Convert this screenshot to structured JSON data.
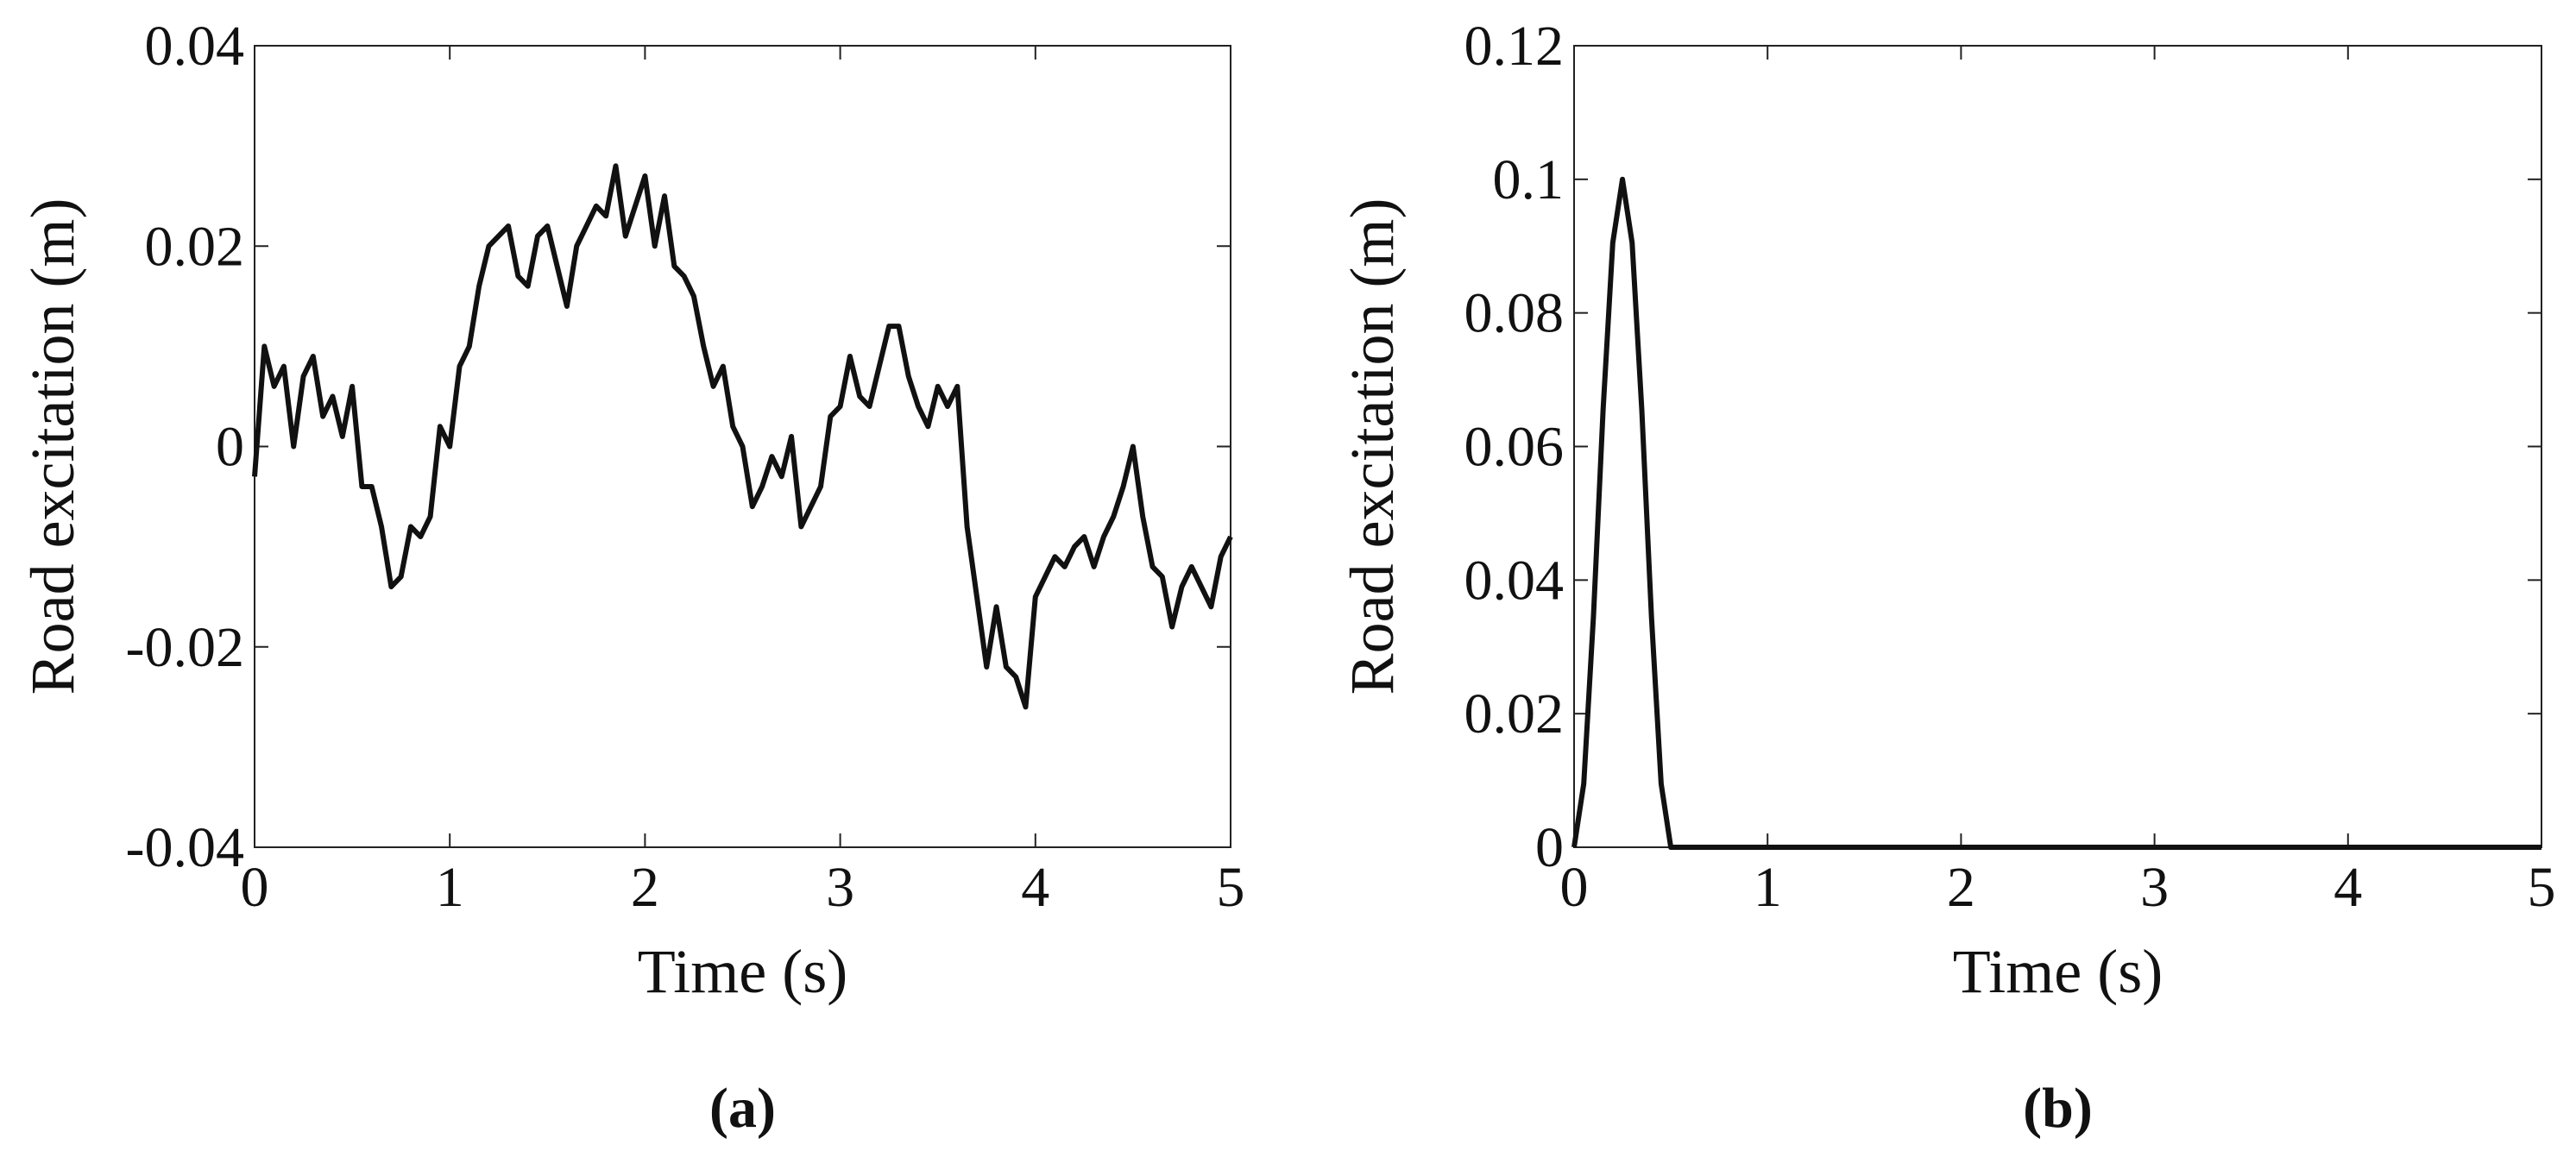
{
  "chart_data": [
    {
      "type": "line",
      "label": "(a)",
      "xlabel": "Time (s)",
      "ylabel": "Road excitation (m)",
      "xlim": [
        0,
        5
      ],
      "ylim": [
        -0.04,
        0.04
      ],
      "xticks": [
        0,
        1,
        2,
        3,
        4,
        5
      ],
      "yticks": [
        -0.04,
        -0.02,
        0,
        0.02,
        0.04
      ],
      "series": [
        {
          "color": "#111111",
          "x": [
            0,
            0.05,
            0.1,
            0.15,
            0.2,
            0.25,
            0.3,
            0.35,
            0.4,
            0.45,
            0.5,
            0.55,
            0.6,
            0.65,
            0.7,
            0.75,
            0.8,
            0.85,
            0.9,
            0.95,
            1.0,
            1.05,
            1.1,
            1.15,
            1.2,
            1.25,
            1.3,
            1.35,
            1.4,
            1.45,
            1.5,
            1.55,
            1.6,
            1.65,
            1.7,
            1.75,
            1.8,
            1.85,
            1.9,
            1.95,
            2.0,
            2.05,
            2.1,
            2.15,
            2.2,
            2.25,
            2.3,
            2.35,
            2.4,
            2.45,
            2.5,
            2.55,
            2.6,
            2.65,
            2.7,
            2.75,
            2.8,
            2.85,
            2.9,
            2.95,
            3.0,
            3.05,
            3.1,
            3.15,
            3.2,
            3.25,
            3.3,
            3.35,
            3.4,
            3.45,
            3.5,
            3.55,
            3.6,
            3.65,
            3.7,
            3.75,
            3.8,
            3.85,
            3.9,
            3.95,
            4.0,
            4.05,
            4.1,
            4.15,
            4.2,
            4.25,
            4.3,
            4.35,
            4.4,
            4.45,
            4.5,
            4.55,
            4.6,
            4.65,
            4.7,
            4.75,
            4.8,
            4.85,
            4.9,
            4.95,
            5.0
          ],
          "values": [
            -0.003,
            0.01,
            0.006,
            0.008,
            0.0,
            0.007,
            0.009,
            0.003,
            0.005,
            0.001,
            0.006,
            -0.004,
            -0.004,
            -0.008,
            -0.014,
            -0.013,
            -0.008,
            -0.009,
            -0.007,
            0.002,
            0.0,
            0.008,
            0.01,
            0.016,
            0.02,
            0.021,
            0.022,
            0.017,
            0.016,
            0.021,
            0.022,
            0.018,
            0.014,
            0.02,
            0.022,
            0.024,
            0.023,
            0.028,
            0.021,
            0.024,
            0.027,
            0.02,
            0.025,
            0.018,
            0.017,
            0.015,
            0.01,
            0.006,
            0.008,
            0.002,
            0.0,
            -0.006,
            -0.004,
            -0.001,
            -0.003,
            0.001,
            -0.008,
            -0.006,
            -0.004,
            0.003,
            0.004,
            0.009,
            0.005,
            0.004,
            0.008,
            0.012,
            0.012,
            0.007,
            0.004,
            0.002,
            0.006,
            0.004,
            0.006,
            -0.008,
            -0.015,
            -0.022,
            -0.016,
            -0.022,
            -0.023,
            -0.026,
            -0.015,
            -0.013,
            -0.011,
            -0.012,
            -0.01,
            -0.009,
            -0.012,
            -0.009,
            -0.007,
            -0.004,
            0.0,
            -0.007,
            -0.012,
            -0.013,
            -0.018,
            -0.014,
            -0.012,
            -0.014,
            -0.016,
            -0.011,
            -0.009
          ]
        }
      ]
    },
    {
      "type": "line",
      "label": "(b)",
      "xlabel": "Time (s)",
      "ylabel": "Road excitation (m)",
      "xlim": [
        0,
        5
      ],
      "ylim": [
        0,
        0.12
      ],
      "xticks": [
        0,
        1,
        2,
        3,
        4,
        5
      ],
      "yticks": [
        0,
        0.02,
        0.04,
        0.06,
        0.08,
        0.1,
        0.12
      ],
      "series": [
        {
          "color": "#111111",
          "x": [
            0,
            0.05,
            0.1,
            0.15,
            0.2,
            0.25,
            0.3,
            0.35,
            0.4,
            0.45,
            0.5,
            5
          ],
          "values": [
            0,
            0.0095,
            0.0345,
            0.0655,
            0.0905,
            0.1,
            0.0905,
            0.0655,
            0.0345,
            0.0095,
            0,
            0
          ]
        }
      ]
    }
  ]
}
